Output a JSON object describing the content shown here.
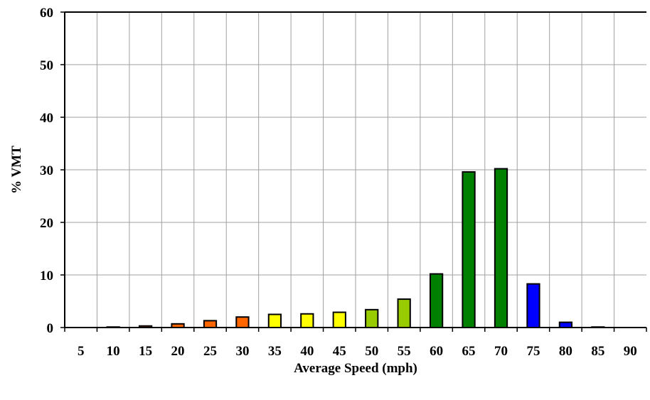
{
  "chart_data": {
    "type": "bar",
    "title": "",
    "xlabel": "Average Speed (mph)",
    "ylabel": "% VMT",
    "categories": [
      "5",
      "10",
      "15",
      "20",
      "25",
      "30",
      "35",
      "40",
      "45",
      "50",
      "55",
      "60",
      "65",
      "70",
      "75",
      "80",
      "85",
      "90"
    ],
    "values": [
      0.0,
      0.1,
      0.3,
      0.7,
      1.3,
      2.0,
      2.5,
      2.6,
      2.9,
      3.4,
      5.4,
      10.2,
      29.6,
      30.2,
      8.3,
      1.0,
      0.1,
      0.0
    ],
    "bar_colors": [
      "#FF6600",
      "#FF6600",
      "#FF6600",
      "#FF6600",
      "#FF6600",
      "#FF6600",
      "#FFFF00",
      "#FFFF00",
      "#FFFF00",
      "#99CC00",
      "#99CC00",
      "#008000",
      "#008000",
      "#008000",
      "#0000FF",
      "#0000FF",
      "#0000FF",
      "#0000FF"
    ],
    "ylim": [
      0,
      60
    ],
    "yticks": [
      0,
      10,
      20,
      30,
      40,
      50,
      60
    ],
    "grid": true,
    "legend": "none"
  }
}
